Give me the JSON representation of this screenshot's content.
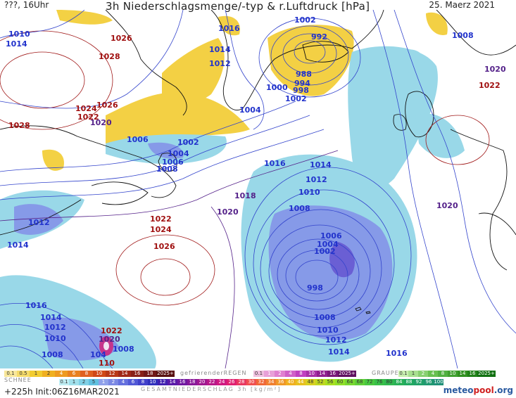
{
  "header": {
    "left": "???, 16Uhr",
    "title": "3h Niederschlagsmenge/-typ & r.Luftdruck [hPa]",
    "date": "25. Maerz 2021"
  },
  "colors": {
    "isobar_low": "#3344cc",
    "isobar_high": "#a01818",
    "rain_light": "#8ed4e6",
    "rain_mid": "#7a90e6",
    "rain_heavy": "#5a4ed0",
    "snow": "#f2cc30",
    "coast": "#111111"
  },
  "isobar_labels": [
    {
      "id": "l1010a",
      "text": "1010",
      "cls": "low"
    },
    {
      "id": "l1014a",
      "text": "1014",
      "cls": "low"
    },
    {
      "id": "l1026a",
      "text": "1026",
      "cls": "high"
    },
    {
      "id": "l1028a",
      "text": "1028",
      "cls": "high"
    },
    {
      "id": "l1016a",
      "text": "1016",
      "cls": "low"
    },
    {
      "id": "l1014b",
      "text": "1014",
      "cls": "low"
    },
    {
      "id": "l1012a",
      "text": "1012",
      "cls": "low"
    },
    {
      "id": "l1002a",
      "text": "1002",
      "cls": "low"
    },
    {
      "id": "l992",
      "text": "992",
      "cls": "low"
    },
    {
      "id": "l988",
      "text": "988",
      "cls": "low"
    },
    {
      "id": "l994",
      "text": "994",
      "cls": "low"
    },
    {
      "id": "l998a",
      "text": "998",
      "cls": "low"
    },
    {
      "id": "l1000",
      "text": "1000",
      "cls": "low"
    },
    {
      "id": "l1002b",
      "text": "1002",
      "cls": "low"
    },
    {
      "id": "l1008a",
      "text": "1008",
      "cls": "low"
    },
    {
      "id": "l1020a",
      "text": "1020",
      "cls": "mid"
    },
    {
      "id": "l1022a",
      "text": "1022",
      "cls": "high"
    },
    {
      "id": "l1024a",
      "text": "1024",
      "cls": "high"
    },
    {
      "id": "l1022b",
      "text": "1022",
      "cls": "high"
    },
    {
      "id": "l1026b",
      "text": "1026",
      "cls": "high"
    },
    {
      "id": "l1020b",
      "text": "1020",
      "cls": "mid"
    },
    {
      "id": "l1028b",
      "text": "1028",
      "cls": "high"
    },
    {
      "id": "l1004a",
      "text": "1004",
      "cls": "low"
    },
    {
      "id": "l1006a",
      "text": "1006",
      "cls": "low"
    },
    {
      "id": "l1002c",
      "text": "1002",
      "cls": "low"
    },
    {
      "id": "l1004b",
      "text": "1004",
      "cls": "low"
    },
    {
      "id": "l1006b",
      "text": "1006",
      "cls": "low"
    },
    {
      "id": "l1008b",
      "text": "1008",
      "cls": "low"
    },
    {
      "id": "l1016b",
      "text": "1016",
      "cls": "low"
    },
    {
      "id": "l1014c",
      "text": "1014",
      "cls": "low"
    },
    {
      "id": "l1012b",
      "text": "1012",
      "cls": "low"
    },
    {
      "id": "l1010b",
      "text": "1010",
      "cls": "low"
    },
    {
      "id": "l1008c",
      "text": "1008",
      "cls": "low"
    },
    {
      "id": "l1018",
      "text": "1018",
      "cls": "mid"
    },
    {
      "id": "l1020c",
      "text": "1020",
      "cls": "mid"
    },
    {
      "id": "l1022c",
      "text": "1022",
      "cls": "high"
    },
    {
      "id": "l1024b",
      "text": "1024",
      "cls": "high"
    },
    {
      "id": "l1026c",
      "text": "1026",
      "cls": "high"
    },
    {
      "id": "l1012c",
      "text": "1012",
      "cls": "low"
    },
    {
      "id": "l1014d",
      "text": "1014",
      "cls": "low"
    },
    {
      "id": "l1006c",
      "text": "1006",
      "cls": "low"
    },
    {
      "id": "l1004c",
      "text": "1004",
      "cls": "low"
    },
    {
      "id": "l1002d",
      "text": "1002",
      "cls": "low"
    },
    {
      "id": "l998b",
      "text": "998",
      "cls": "low"
    },
    {
      "id": "l1008d",
      "text": "1008",
      "cls": "low"
    },
    {
      "id": "l1010c",
      "text": "1010",
      "cls": "low"
    },
    {
      "id": "l1012d",
      "text": "1012",
      "cls": "low"
    },
    {
      "id": "l1014e",
      "text": "1014",
      "cls": "low"
    },
    {
      "id": "l1016c",
      "text": "1016",
      "cls": "low"
    },
    {
      "id": "l1020d",
      "text": "1020",
      "cls": "mid"
    },
    {
      "id": "l1016d",
      "text": "1016",
      "cls": "low"
    },
    {
      "id": "l1014f",
      "text": "1014",
      "cls": "low"
    },
    {
      "id": "l1012e",
      "text": "1012",
      "cls": "low"
    },
    {
      "id": "l1010d",
      "text": "1010",
      "cls": "low"
    },
    {
      "id": "l1008e",
      "text": "1008",
      "cls": "low"
    },
    {
      "id": "l1008f",
      "text": "1008",
      "cls": "low"
    },
    {
      "id": "l1020e",
      "text": "1020",
      "cls": "mid"
    },
    {
      "id": "l1022d",
      "text": "1022",
      "cls": "high"
    },
    {
      "id": "l104",
      "text": "104",
      "cls": "low"
    },
    {
      "id": "l110",
      "text": "110",
      "cls": "high"
    }
  ],
  "legend": {
    "snow_label": "SCHNEE",
    "snow_values": [
      "0.1",
      "0.5",
      "1",
      "2",
      "4",
      "6",
      "8",
      "10",
      "12",
      "14",
      "16",
      "18",
      "2025+"
    ],
    "freezing_label": "gefrierenderREGEN",
    "freezing_values": [
      "0.1",
      "1",
      "2",
      "4",
      "8",
      "10",
      "14",
      "16",
      "2025+"
    ],
    "graupel_label": "GRAUPEL",
    "graupel_values": [
      "0.1",
      "1",
      "2",
      "4",
      "8",
      "10",
      "14",
      "16",
      "2025+"
    ],
    "total_values": [
      "0.1",
      "1",
      "2",
      "5",
      "1",
      "2",
      "4",
      "6",
      "8",
      "10",
      "12",
      "14",
      "16",
      "18",
      "20",
      "22",
      "24",
      "26",
      "28",
      "30",
      "32",
      "34",
      "36",
      "40",
      "44",
      "48",
      "52",
      "56",
      "60",
      "64",
      "68",
      "72",
      "76",
      "80",
      "84",
      "88",
      "92",
      "96",
      "100"
    ],
    "total_label": "GESAMTNIEDERSCHLAG 3h [kg/m²]"
  },
  "footer": {
    "init": "+225h Init:06Z16MAR2021",
    "logo_left": "meteo",
    "logo_right": "pool",
    "logo_suffix": ".org"
  }
}
